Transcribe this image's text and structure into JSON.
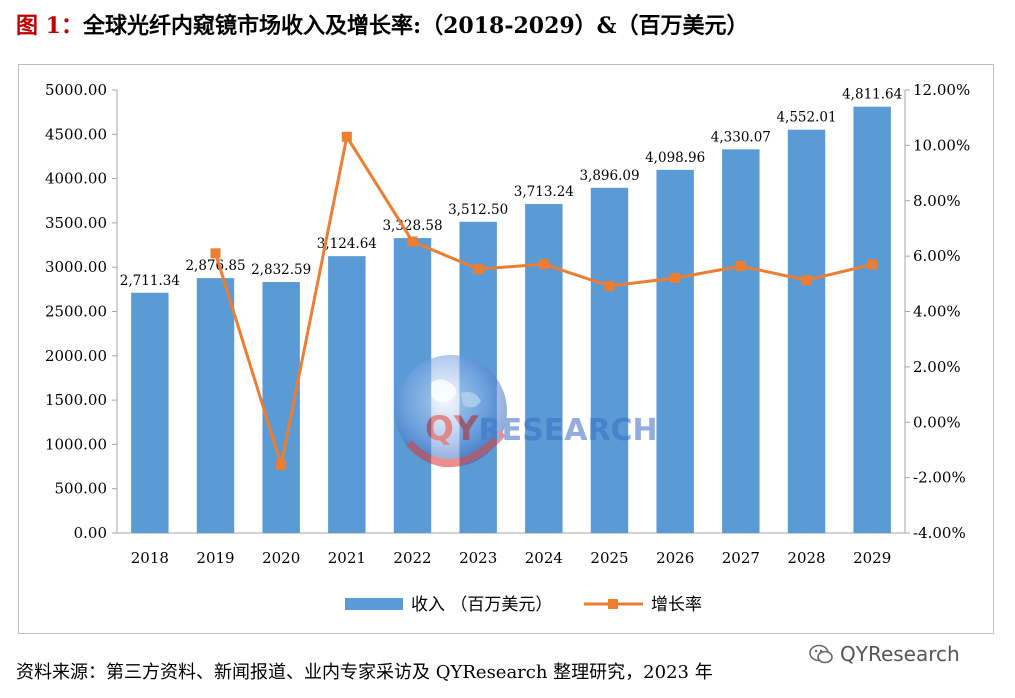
{
  "title": {
    "prefix": "图 1：",
    "text": "全球光纤内窥镜市场收入及增长率:（2018-2029）&（百万美元）"
  },
  "chart_data": {
    "type": "bar",
    "categories": [
      "2018",
      "2019",
      "2020",
      "2021",
      "2022",
      "2023",
      "2024",
      "2025",
      "2026",
      "2027",
      "2028",
      "2029"
    ],
    "series": [
      {
        "name": "收入 （百万美元）",
        "type": "bar",
        "axis": "left",
        "color": "#5b9bd5",
        "values": [
          2711.34,
          2876.85,
          2832.59,
          3124.64,
          3328.58,
          3512.5,
          3713.24,
          3896.09,
          4098.96,
          4330.07,
          4552.01,
          4811.64
        ],
        "labels": [
          "2,711.34",
          "2,876.85",
          "2,832.59",
          "3,124.64",
          "3,328.58",
          "3,512.50",
          "3,713.24",
          "3,896.09",
          "4,098.96",
          "4,330.07",
          "4,552.01",
          "4,811.64"
        ]
      },
      {
        "name": "增长率",
        "type": "line",
        "axis": "right",
        "color": "#ed7d31",
        "values": [
          null,
          6.1,
          -1.54,
          10.31,
          6.53,
          5.53,
          5.71,
          4.92,
          5.21,
          5.64,
          5.13,
          5.7
        ]
      }
    ],
    "left_axis": {
      "min": 0,
      "max": 5000,
      "step": 500,
      "ticks": [
        "0.00",
        "500.00",
        "1000.00",
        "1500.00",
        "2000.00",
        "2500.00",
        "3000.00",
        "3500.00",
        "4000.00",
        "4500.00",
        "5000.00"
      ]
    },
    "right_axis": {
      "min": -4,
      "max": 12,
      "step": 2,
      "ticks": [
        "-4.00%",
        "-2.00%",
        "0.00%",
        "2.00%",
        "4.00%",
        "6.00%",
        "8.00%",
        "10.00%",
        "12.00%"
      ]
    },
    "grid": false,
    "legend_position": "bottom"
  },
  "watermark": {
    "qy": "QY",
    "rest": "RESEARCH"
  },
  "source": "资料来源：第三方资料、新闻报道、业内专家采访及 QYResearch 整理研究，2023 年",
  "brand": "QYResearch"
}
